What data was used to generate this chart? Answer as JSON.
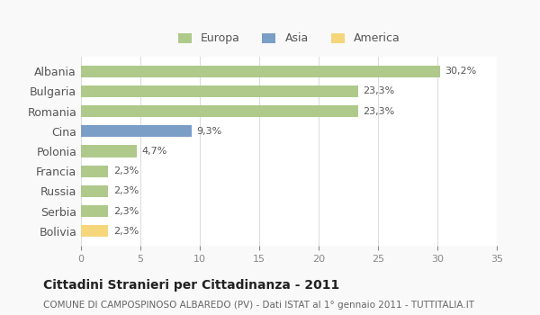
{
  "categories": [
    "Albania",
    "Bulgaria",
    "Romania",
    "Cina",
    "Polonia",
    "Francia",
    "Russia",
    "Serbia",
    "Bolivia"
  ],
  "values": [
    30.2,
    23.3,
    23.3,
    9.3,
    4.7,
    2.3,
    2.3,
    2.3,
    2.3
  ],
  "labels": [
    "30,2%",
    "23,3%",
    "23,3%",
    "9,3%",
    "4,7%",
    "2,3%",
    "2,3%",
    "2,3%",
    "2,3%"
  ],
  "bar_colors": [
    "#aec98a",
    "#aec98a",
    "#aec98a",
    "#7b9ec7",
    "#aec98a",
    "#aec98a",
    "#aec98a",
    "#aec98a",
    "#f5d67a"
  ],
  "legend_labels": [
    "Europa",
    "Asia",
    "America"
  ],
  "legend_colors": [
    "#aec98a",
    "#7b9ec7",
    "#f5d67a"
  ],
  "title": "Cittadini Stranieri per Cittadinanza - 2011",
  "subtitle": "COMUNE DI CAMPOSPINOSO ALBAREDO (PV) - Dati ISTAT al 1° gennaio 2011 - TUTTITALIA.IT",
  "xlim": [
    0,
    35
  ],
  "xticks": [
    0,
    5,
    10,
    15,
    20,
    25,
    30,
    35
  ],
  "background_color": "#f9f9f9",
  "plot_bg_color": "#ffffff",
  "grid_color": "#dddddd"
}
